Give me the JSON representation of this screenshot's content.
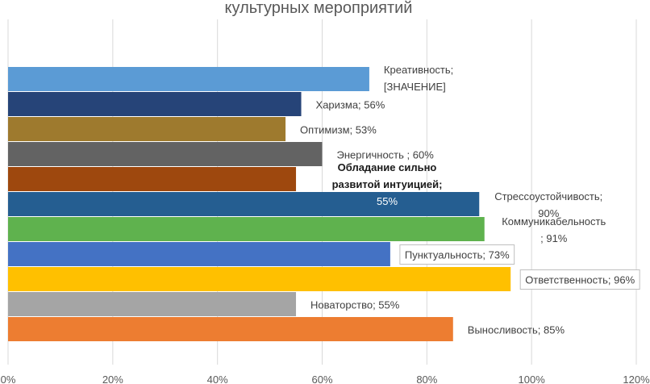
{
  "chart_data": {
    "type": "bar",
    "orientation": "horizontal",
    "title": "культурных мероприятий",
    "xlim": [
      0,
      120
    ],
    "x_ticks": [
      "0%",
      "20%",
      "40%",
      "60%",
      "80%",
      "100%",
      "120%"
    ],
    "grid": true,
    "bars": [
      {
        "category": "Креативность",
        "value": 69,
        "color": "#5B9BD5",
        "label": [
          "Креативность;",
          "[ЗНАЧЕНИЕ]"
        ]
      },
      {
        "category": "Харизма",
        "value": 56,
        "color": "#264478",
        "label": [
          "Харизма; 56%"
        ]
      },
      {
        "category": "Оптимизм",
        "value": 53,
        "color": "#9E7A2E",
        "label": [
          "Оптимизм; 53%"
        ]
      },
      {
        "category": "Энергичность",
        "value": 60,
        "color": "#636363",
        "label": [
          "Энергичность ; 60%"
        ]
      },
      {
        "category": "Обладание сильно развитой интуицией",
        "value": 55,
        "color": "#9E480E",
        "label": [
          "Обладание сильно",
          "развитой интуицией;",
          "55%"
        ]
      },
      {
        "category": "Стрессоустойчивость",
        "value": 90,
        "color": "#255E91",
        "label": [
          "Стрессоустойчивость;",
          "90%"
        ]
      },
      {
        "category": "Коммуникабельность",
        "value": 91,
        "color": "#5FB24E",
        "label": [
          "Коммуникабельность",
          "; 91%"
        ]
      },
      {
        "category": "Пунктуальность",
        "value": 73,
        "color": "#4472C4",
        "label": [
          "Пунктуальность; 73%"
        ]
      },
      {
        "category": "Ответственность",
        "value": 96,
        "color": "#FFC000",
        "label": [
          "Ответственность; 96%"
        ]
      },
      {
        "category": "Новаторство",
        "value": 55,
        "color": "#A5A5A5",
        "label": [
          "Новаторство; 55%"
        ]
      },
      {
        "category": "Выносливость",
        "value": 85,
        "color": "#ED7D31",
        "label": [
          "Выносливость; 85%"
        ]
      }
    ]
  }
}
